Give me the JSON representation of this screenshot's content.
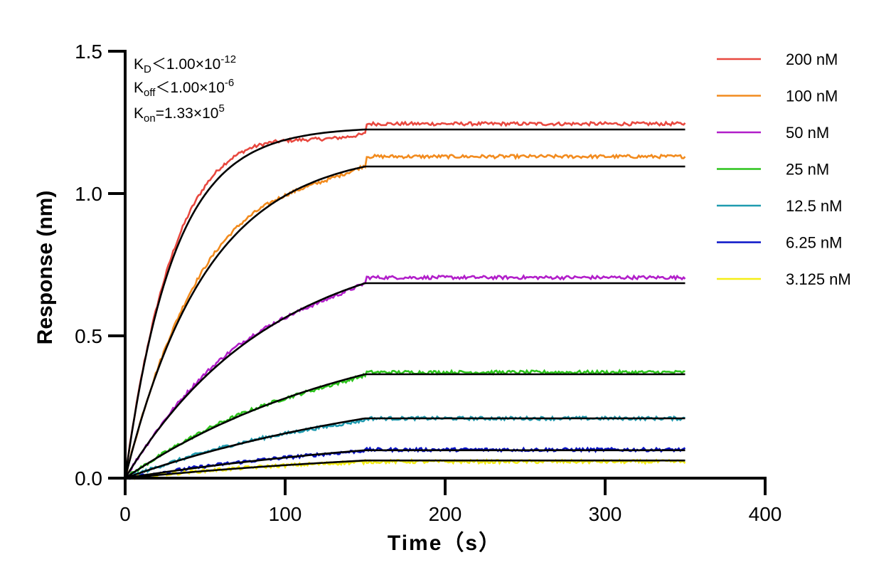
{
  "chart_data": {
    "type": "line",
    "title": "",
    "xlabel": "Time（s）",
    "ylabel": "Response (nm)",
    "xlim": [
      0,
      400
    ],
    "ylim": [
      0,
      1.5
    ],
    "x_ticks": [
      "0",
      "100",
      "200",
      "300",
      "400"
    ],
    "y_ticks": [
      "0.0",
      "0.5",
      "1.0",
      "1.5"
    ],
    "grid": false,
    "legend_position": "top-right",
    "association_end": 150,
    "x_end": 350,
    "annotations": {
      "kd": {
        "base": "K",
        "sub": "D",
        "relation": "＜",
        "value": "1.00×10",
        "exp": "-12"
      },
      "koff": {
        "base": "K",
        "sub": "off",
        "relation": "＜",
        "value": "1.00×10",
        "exp": "-6"
      },
      "kon": {
        "base": "K",
        "sub": "on",
        "relation": "=",
        "value": "1.33×10",
        "exp": "5"
      }
    },
    "fit_color": "#000000",
    "series": [
      {
        "name": "200 nM",
        "color": "#e8483f",
        "plateau": 1.225,
        "rate": 0.033,
        "dissociation": 1.245
      },
      {
        "name": "100 nM",
        "color": "#f28b1e",
        "plateau": 1.095,
        "rate": 0.0195,
        "dissociation": 1.13
      },
      {
        "name": "50 nM",
        "color": "#b11ec9",
        "plateau": 0.685,
        "rate": 0.0108,
        "dissociation": 0.705
      },
      {
        "name": "25 nM",
        "color": "#2cc41b",
        "plateau": 0.365,
        "rate": 0.0066,
        "dissociation": 0.372
      },
      {
        "name": "12.5 nM",
        "color": "#1f9bb0",
        "plateau": 0.21,
        "rate": 0.0052,
        "dissociation": 0.21
      },
      {
        "name": "6.25 nM",
        "color": "#0a14c8",
        "plateau": 0.098,
        "rate": 0.0045,
        "dissociation": 0.1
      },
      {
        "name": "3.125 nM",
        "color": "#f5ee16",
        "plateau": 0.062,
        "rate": 0.0042,
        "dissociation": 0.058
      }
    ]
  }
}
